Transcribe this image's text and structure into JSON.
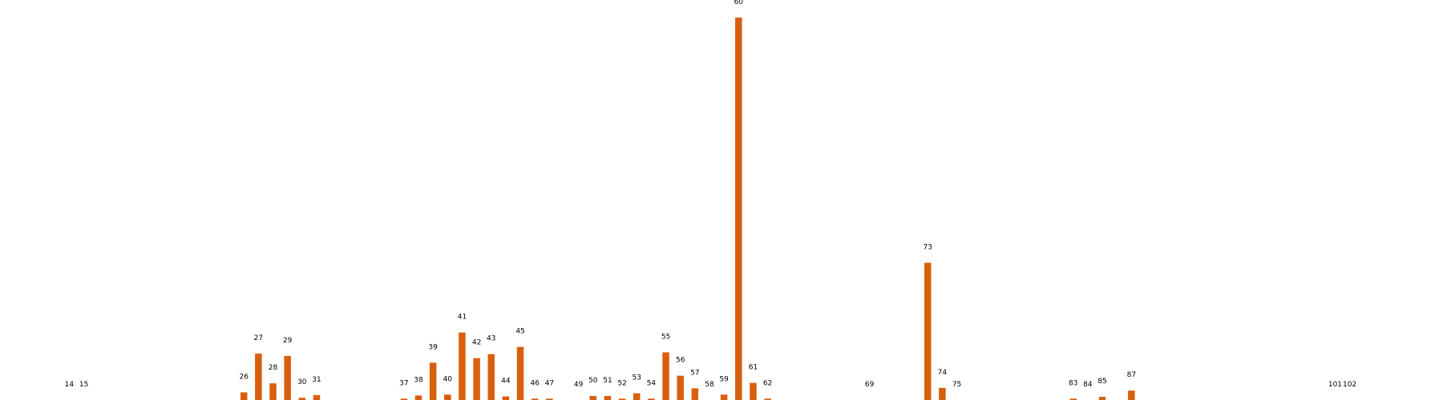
{
  "chart_data": {
    "type": "bar",
    "title": "",
    "xlabel": "",
    "ylabel": "",
    "bar_color": "#d95f0e",
    "axes_visible": false,
    "grid": false,
    "legend": "none",
    "ylim": [
      0,
      8.5
    ],
    "categories": [
      "14",
      "15",
      "26",
      "27",
      "28",
      "29",
      "30",
      "31",
      "37",
      "38",
      "39",
      "40",
      "41",
      "42",
      "43",
      "44",
      "45",
      "46",
      "47",
      "49",
      "50",
      "51",
      "52",
      "53",
      "54",
      "55",
      "56",
      "57",
      "58",
      "59",
      "60",
      "61",
      "62",
      "69",
      "73",
      "74",
      "75",
      "83",
      "84",
      "85",
      "87",
      "101",
      "102"
    ],
    "values": [
      0,
      0,
      0.17,
      1.03,
      0.37,
      0.98,
      0.05,
      0.11,
      0.03,
      0.1,
      0.83,
      0.12,
      1.5,
      0.93,
      1.02,
      0.08,
      1.18,
      0.03,
      0.03,
      0,
      0.09,
      0.09,
      0.03,
      0.15,
      0.03,
      1.06,
      0.54,
      0.26,
      0,
      0.12,
      8.5,
      0.38,
      0.03,
      0,
      3.05,
      0.27,
      0,
      0.03,
      0,
      0.07,
      0.21,
      0,
      0
    ]
  }
}
